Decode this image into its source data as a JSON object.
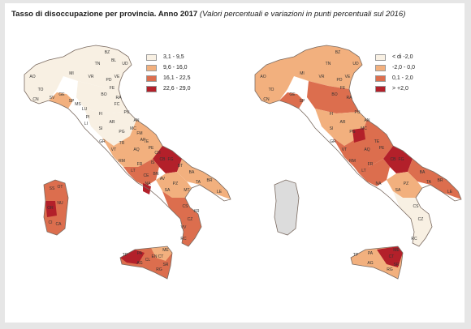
{
  "title": {
    "bold": "Tasso di disoccupazione per provincia. Anno 2017",
    "italic": "(Valori percentuali e variazioni in punti percentuali sul 2016)"
  },
  "colors": {
    "class1": "#f8f0e3",
    "class2": "#f2b07e",
    "class3": "#dc6e4e",
    "class4": "#b3202a",
    "border": "#7a6a60"
  },
  "left_map": {
    "legend": [
      {
        "label": "3,1 - 9,5",
        "color": "#f8f0e3"
      },
      {
        "label": "9,6 - 16,0",
        "color": "#f2b07e"
      },
      {
        "label": "16,1 - 22,5",
        "color": "#dc6e4e"
      },
      {
        "label": "22,6 - 29,0",
        "color": "#b3202a"
      }
    ],
    "province_labels": [
      "AO",
      "TO",
      "CN",
      "MI",
      "BZ",
      "TN",
      "BL",
      "VR",
      "VE",
      "PD",
      "UD",
      "GE",
      "SV",
      "SP",
      "MS",
      "LU",
      "PI",
      "LI",
      "BO",
      "FE",
      "RA",
      "FC",
      "PU",
      "AN",
      "MC",
      "FM",
      "AP",
      "FI",
      "AR",
      "SI",
      "GR",
      "PG",
      "TR",
      "VT",
      "RM",
      "LT",
      "FR",
      "AQ",
      "TE",
      "PE",
      "CH",
      "IS",
      "CB",
      "FG",
      "BA",
      "BT",
      "TA",
      "BR",
      "LE",
      "CE",
      "BN",
      "NA",
      "AV",
      "SA",
      "PZ",
      "MT",
      "CS",
      "KR",
      "CZ",
      "VV",
      "RC",
      "ME",
      "PA",
      "TP",
      "AG",
      "CL",
      "EN",
      "CT",
      "RG",
      "SR",
      "SS",
      "OT",
      "NU",
      "OR",
      "CI",
      "CA"
    ]
  },
  "right_map": {
    "legend": [
      {
        "label": "< di -2,0",
        "color": "#f8f0e3"
      },
      {
        "label": "-2,0 - 0,0",
        "color": "#f2b07e"
      },
      {
        "label": "0,1 - 2,0",
        "color": "#dc6e4e"
      },
      {
        "label": "> +2,0",
        "color": "#b3202a"
      }
    ],
    "province_labels": [
      "AO",
      "TO",
      "CN",
      "MI",
      "BZ",
      "TN",
      "VR",
      "VE",
      "PD",
      "UD",
      "GE",
      "SP",
      "BO",
      "FE",
      "RA",
      "PU",
      "AN",
      "MC",
      "FI",
      "AR",
      "SI",
      "GR",
      "PG",
      "VT",
      "RM",
      "LT",
      "FR",
      "AQ",
      "TE",
      "PE",
      "CB",
      "FG",
      "BA",
      "TA",
      "BR",
      "LE",
      "NA",
      "SA",
      "PZ",
      "CS",
      "CZ",
      "RC",
      "ME",
      "PA",
      "TP",
      "AG",
      "CT",
      "RG",
      "SR"
    ]
  }
}
